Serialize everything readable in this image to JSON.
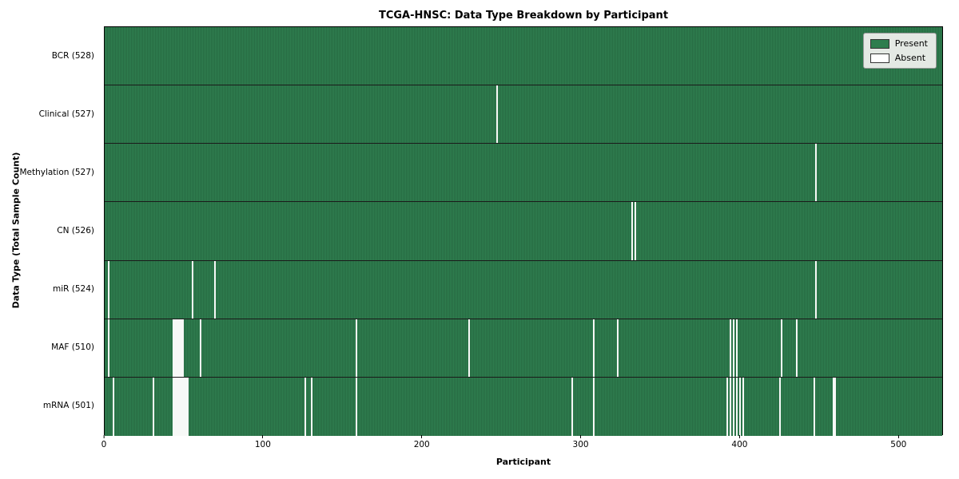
{
  "chart_data": {
    "type": "heatmap",
    "title": "TCGA-HNSC: Data Type Breakdown by Participant",
    "xlabel": "Participant",
    "ylabel": "Data Type (Total Sample Count)",
    "n_participants": 528,
    "x_ticks": [
      0,
      100,
      200,
      300,
      400,
      500
    ],
    "legend": [
      {
        "label": "Present",
        "color": "#2e7d4e"
      },
      {
        "label": "Absent",
        "color": "#ffffff"
      }
    ],
    "rows": [
      {
        "label": "BCR (528)",
        "count": 528,
        "absent": []
      },
      {
        "label": "Clinical (527)",
        "count": 527,
        "absent": [
          247
        ]
      },
      {
        "label": "Methylation (527)",
        "count": 527,
        "absent": [
          448
        ]
      },
      {
        "label": "CN (526)",
        "count": 526,
        "absent": [
          332,
          334
        ]
      },
      {
        "label": "miR (524)",
        "count": 524,
        "absent": [
          2,
          55,
          69,
          448
        ]
      },
      {
        "label": "MAF (510)",
        "count": 510,
        "absent": [
          2,
          43,
          44,
          45,
          46,
          47,
          48,
          49,
          60,
          158,
          229,
          308,
          323,
          394,
          396,
          398,
          426,
          436
        ]
      },
      {
        "label": "mRNA (501)",
        "count": 501,
        "absent": [
          5,
          30,
          43,
          44,
          45,
          46,
          47,
          48,
          49,
          50,
          51,
          52,
          126,
          130,
          158,
          294,
          308,
          392,
          394,
          396,
          398,
          400,
          402,
          425,
          447,
          459,
          460
        ]
      }
    ]
  }
}
